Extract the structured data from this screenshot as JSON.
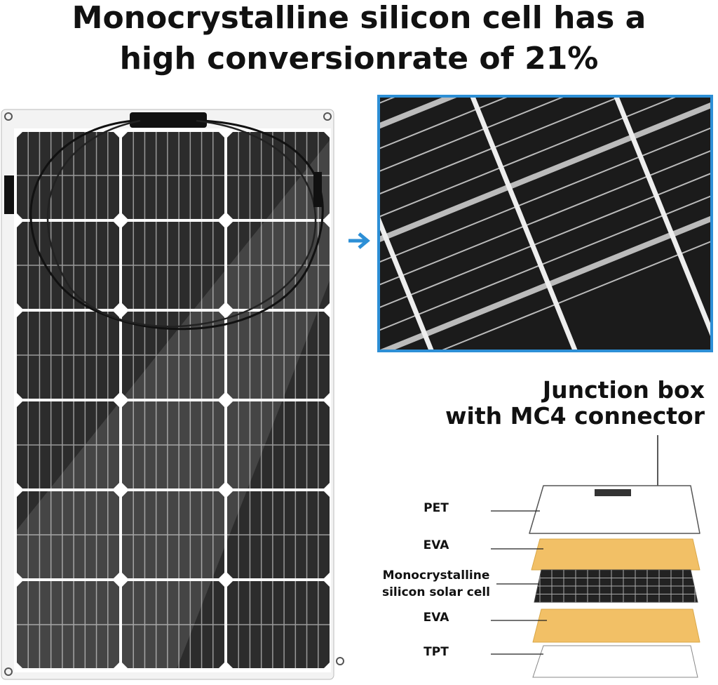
{
  "title": {
    "lines": [
      "Monocrystalline silicon cell has a",
      "high conversionrate of 21%"
    ]
  },
  "callout": {
    "lines": [
      "Junction box",
      "with MC4 connector"
    ]
  },
  "layers": [
    {
      "label": [
        "PET"
      ]
    },
    {
      "label": [
        "EVA"
      ]
    },
    {
      "label": [
        "Monocrystalline",
        "silicon solar cell"
      ]
    },
    {
      "label": [
        "EVA"
      ]
    },
    {
      "label": [
        "TPT"
      ]
    }
  ]
}
